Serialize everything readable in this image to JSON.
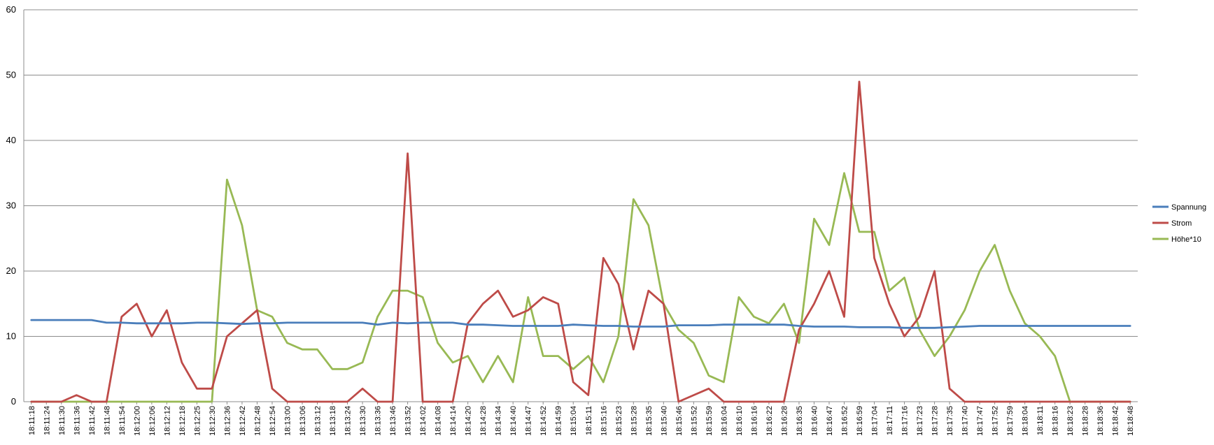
{
  "chart_data": {
    "type": "line",
    "title": "",
    "xlabel": "",
    "ylabel": "",
    "ylim": [
      0,
      60
    ],
    "yticks": [
      0,
      10,
      20,
      30,
      40,
      50,
      60
    ],
    "grid": "horizontal",
    "legend_position": "right",
    "x": [
      "18:11:18",
      "18:11:24",
      "18:11:30",
      "18:11:36",
      "18:11:42",
      "18:11:48",
      "18:11:54",
      "18:12:00",
      "18:12:06",
      "18:12:12",
      "18:12:18",
      "18:12:25",
      "18:12:30",
      "18:12:36",
      "18:12:42",
      "18:12:48",
      "18:12:54",
      "18:13:00",
      "18:13:06",
      "18:13:12",
      "18:13:18",
      "18:13:24",
      "18:13:30",
      "18:13:36",
      "18:13:46",
      "18:13:52",
      "18:14:02",
      "18:14:08",
      "18:14:14",
      "18:14:20",
      "18:14:28",
      "18:14:34",
      "18:14:40",
      "18:14:47",
      "18:14:52",
      "18:14:59",
      "18:15:04",
      "18:15:11",
      "18:15:16",
      "18:15:23",
      "18:15:28",
      "18:15:35",
      "18:15:40",
      "18:15:46",
      "18:15:52",
      "18:15:59",
      "18:16:04",
      "18:16:10",
      "18:16:16",
      "18:16:22",
      "18:16:28",
      "18:16:35",
      "18:16:40",
      "18:16:47",
      "18:16:52",
      "18:16:59",
      "18:17:04",
      "18:17:11",
      "18:17:16",
      "18:17:23",
      "18:17:28",
      "18:17:35",
      "18:17:40",
      "18:17:47",
      "18:17:52",
      "18:17:59",
      "18:18:04",
      "18:18:11",
      "18:18:16",
      "18:18:23",
      "18:18:28",
      "18:18:36",
      "18:18:42",
      "18:18:48"
    ],
    "series": [
      {
        "name": "Spannung",
        "color": "#4a7ebb",
        "values": [
          12.5,
          12.5,
          12.5,
          12.5,
          12.5,
          12.1,
          12.1,
          12.0,
          12.0,
          12.0,
          12.0,
          12.1,
          12.1,
          12.0,
          11.9,
          12.0,
          12.0,
          12.1,
          12.1,
          12.1,
          12.1,
          12.1,
          12.1,
          11.8,
          12.1,
          12.0,
          12.1,
          12.1,
          12.1,
          11.8,
          11.8,
          11.7,
          11.6,
          11.6,
          11.6,
          11.6,
          11.8,
          11.7,
          11.6,
          11.6,
          11.5,
          11.5,
          11.5,
          11.7,
          11.7,
          11.7,
          11.8,
          11.8,
          11.8,
          11.8,
          11.8,
          11.6,
          11.5,
          11.5,
          11.5,
          11.4,
          11.4,
          11.4,
          11.3,
          11.3,
          11.3,
          11.4,
          11.5,
          11.6,
          11.6,
          11.6,
          11.6,
          11.6,
          11.6,
          11.6,
          11.6,
          11.6,
          11.6,
          11.6
        ]
      },
      {
        "name": "Strom",
        "color": "#be4b48",
        "values": [
          0,
          0,
          0,
          1,
          0,
          0,
          13,
          15,
          10,
          14,
          6,
          2,
          2,
          10,
          12,
          14,
          2,
          0,
          0,
          0,
          0,
          0,
          2,
          0,
          0,
          38,
          0,
          0,
          0,
          12,
          15,
          17,
          13,
          14,
          16,
          15,
          3,
          1,
          22,
          18,
          8,
          17,
          15,
          0,
          1,
          2,
          0,
          0,
          0,
          0,
          0,
          11,
          15,
          20,
          13,
          49,
          22,
          15,
          10,
          13,
          20,
          2,
          0,
          0,
          0,
          0,
          0,
          0,
          0,
          0,
          0,
          0,
          0,
          0
        ]
      },
      {
        "name": "Höhe*10",
        "color": "#98b954",
        "values": [
          0,
          0,
          0,
          0,
          0,
          0,
          0,
          0,
          0,
          0,
          0,
          0,
          0,
          34,
          27,
          14,
          13,
          9,
          8,
          8,
          5,
          5,
          6,
          13,
          17,
          17,
          16,
          9,
          6,
          7,
          3,
          7,
          3,
          16,
          7,
          7,
          5,
          7,
          3,
          10,
          31,
          27,
          15,
          11,
          9,
          4,
          3,
          16,
          13,
          12,
          15,
          9,
          28,
          24,
          35,
          26,
          26,
          17,
          19,
          11,
          7,
          10,
          14,
          20,
          24,
          17,
          12,
          10,
          7,
          0,
          0,
          0,
          0,
          0
        ]
      }
    ]
  }
}
